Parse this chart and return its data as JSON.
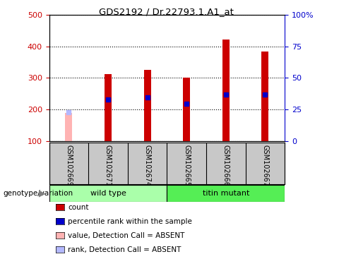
{
  "title": "GDS2192 / Dr.22793.1.A1_at",
  "samples": [
    "GSM102669",
    "GSM102671",
    "GSM102674",
    "GSM102665",
    "GSM102666",
    "GSM102667"
  ],
  "count_values": [
    null,
    312,
    326,
    300,
    422,
    384
  ],
  "absent_value": 190,
  "rank_values": [
    null,
    232,
    238,
    218,
    248,
    248
  ],
  "absent_rank": 192,
  "ylim_left": [
    100,
    500
  ],
  "ylim_right": [
    0,
    100
  ],
  "yticks_left": [
    100,
    200,
    300,
    400,
    500
  ],
  "yticks_right": [
    0,
    25,
    50,
    75,
    100
  ],
  "bar_width": 0.18,
  "count_color": "#cc0000",
  "rank_color": "#0000cc",
  "absent_count_color": "#ffb3b3",
  "absent_rank_color": "#b3b8ff",
  "group_wild_color": "#aaffaa",
  "group_mutant_color": "#55ee55",
  "bg_color": "#c8c8c8",
  "plot_bg": "#ffffff",
  "left_tick_color": "#cc0000",
  "right_tick_color": "#0000cc",
  "legend_items": [
    {
      "label": "count",
      "color": "#cc0000"
    },
    {
      "label": "percentile rank within the sample",
      "color": "#0000cc"
    },
    {
      "label": "value, Detection Call = ABSENT",
      "color": "#ffb3b3"
    },
    {
      "label": "rank, Detection Call = ABSENT",
      "color": "#b3b8ff"
    }
  ]
}
